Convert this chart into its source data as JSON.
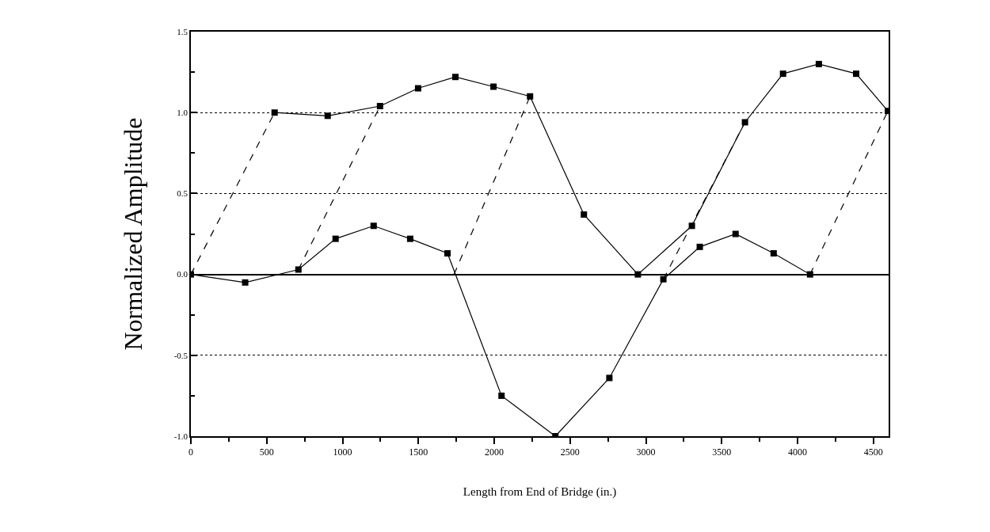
{
  "chart_data": {
    "type": "line",
    "xlabel": "Length from End of Bridge (in.)",
    "ylabel": "Normalized Amplitude",
    "series": [
      {
        "color": "#000000",
        "marker": "square",
        "line_style": "solid",
        "x": [
          0,
          358,
          709,
          954,
          1205,
          1446,
          1692,
          2048,
          2403,
          2759,
          3115,
          3355,
          3591,
          3842,
          4082
        ],
        "values": [
          0.0,
          -0.05,
          0.03,
          0.22,
          0.3,
          0.22,
          0.13,
          -0.75,
          -1.0,
          -0.64,
          -0.03,
          0.17,
          0.25,
          0.13,
          0.0
        ]
      },
      {
        "color": "#000000",
        "marker": "square",
        "line_style": "solid",
        "x": [
          552,
          902,
          1247,
          1498,
          1744,
          1995,
          2236,
          2591,
          2947,
          3303,
          3653,
          3904,
          4140,
          4386,
          4595
        ],
        "values": [
          1.0,
          0.98,
          1.04,
          1.15,
          1.22,
          1.16,
          1.1,
          0.37,
          0.0,
          0.3,
          0.94,
          1.24,
          1.3,
          1.24,
          1.01
        ]
      },
      {
        "color": "#000000",
        "marker": "none",
        "line_style": "dashed",
        "x": [
          0,
          552,
          null,
          709,
          1247,
          null,
          1735,
          2236,
          null,
          3115,
          3653,
          null,
          4082,
          4595
        ],
        "values": [
          0.0,
          1.0,
          null,
          0.03,
          1.04,
          null,
          0.0,
          1.1,
          null,
          -0.03,
          0.94,
          null,
          0.0,
          1.01
        ]
      }
    ],
    "xlim": [
      0,
      4600
    ],
    "xticks": [
      0,
      500,
      1000,
      1500,
      2000,
      2500,
      3000,
      3500,
      4000,
      4500
    ],
    "ylim": [
      -1.0,
      1.5
    ],
    "yticks": [
      {
        "value": -1.0,
        "label": "-1.0"
      },
      {
        "value": -0.5,
        "label": "-0.5"
      },
      {
        "value": 0.0,
        "label": "0.0"
      },
      {
        "value": 0.5,
        "label": "0.5"
      },
      {
        "value": 1.0,
        "label": "1.0"
      },
      {
        "value": 1.5,
        "label": "1.5"
      }
    ],
    "grid": "y"
  }
}
